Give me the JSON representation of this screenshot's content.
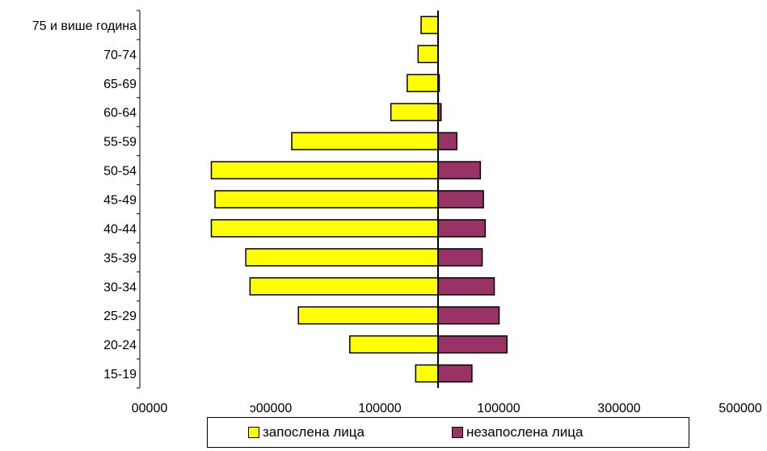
{
  "chart_data": {
    "type": "bar",
    "orientation": "horizontal",
    "stacking": "diverging",
    "categories": [
      "15-19",
      "20-24",
      "25-29",
      "30-34",
      "35-39",
      "40-44",
      "45-49",
      "50-54",
      "55-59",
      "60-64",
      "65-69",
      "70-74",
      "75 и више година"
    ],
    "series": [
      {
        "name": "запослена лица",
        "side": "left",
        "color": "#FFFF00",
        "values": [
          37000,
          146000,
          231000,
          311000,
          318000,
          375000,
          369000,
          375000,
          242000,
          78000,
          51000,
          33000,
          28000
        ]
      },
      {
        "name": "незапослена лица",
        "side": "right",
        "color": "#993366",
        "values": [
          56000,
          114000,
          101000,
          93000,
          73000,
          78000,
          75000,
          70000,
          31000,
          5000,
          2000,
          0,
          0
        ]
      }
    ],
    "xaxis_ticks": [
      "00000",
      "ͻ00000",
      "100000",
      "100000",
      "300000",
      "500000"
    ],
    "xlim": [
      -500000,
      500000
    ],
    "legend_position": "bottom",
    "grid": false
  }
}
